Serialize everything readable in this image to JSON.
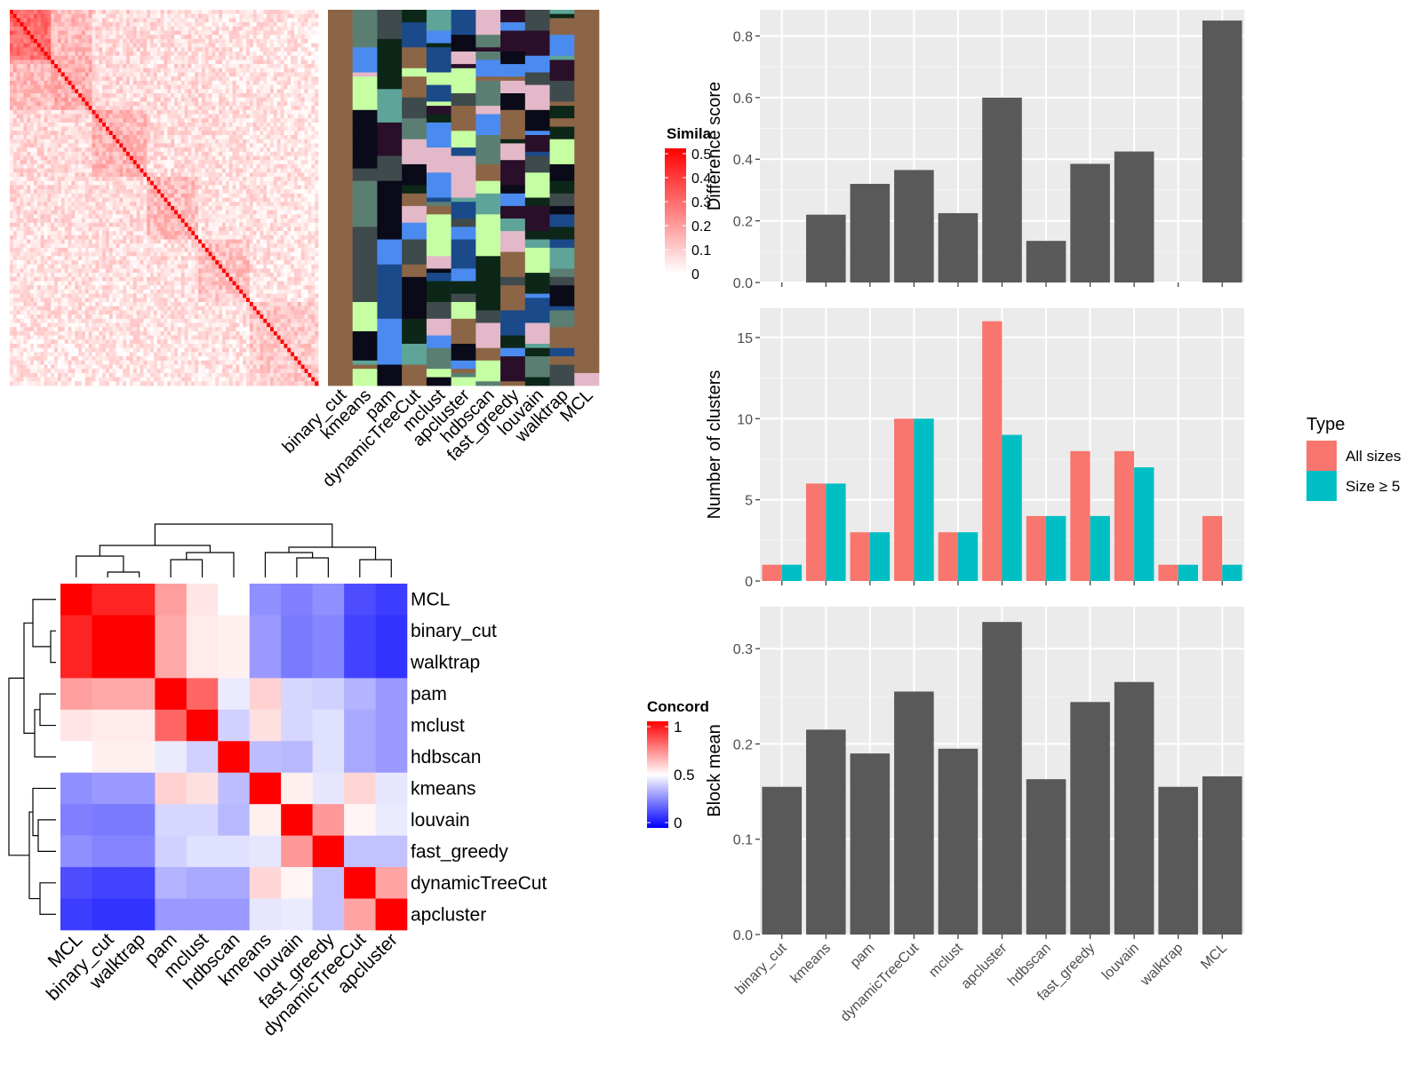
{
  "methods": [
    "binary_cut",
    "kmeans",
    "pam",
    "dynamicTreeCut",
    "mclust",
    "apcluster",
    "hdbscan",
    "fast_greedy",
    "louvain",
    "walktrap",
    "MCL"
  ],
  "colors": {
    "panel_bg": "#ebebeb",
    "bar_fill": "#595959",
    "all_sizes": "#f8766d",
    "size_ge5": "#00bfc4",
    "sim_high": "#ff0000",
    "label_palette": [
      "#8c6546",
      "#e3b8c9",
      "#4b8bf0",
      "#3f4a4d",
      "#5a7f72",
      "#5ea499",
      "#1b4a8a",
      "#0c2618",
      "#c6ffa3",
      "#0a0a18",
      "#2a0f2a"
    ]
  },
  "top_left": {
    "similarity_legend": {
      "title": "Simila",
      "ticks": [
        "0",
        "0.1",
        "0.2",
        "0.3",
        "0.4",
        "0.5"
      ]
    }
  },
  "bottom_left": {
    "concordance_legend": {
      "title": "Concord",
      "ticks": [
        "0",
        "0.5",
        "1"
      ]
    },
    "order": [
      "MCL",
      "binary_cut",
      "walktrap",
      "pam",
      "mclust",
      "hdbscan",
      "kmeans",
      "louvain",
      "fast_greedy",
      "dynamicTreeCut",
      "apcluster"
    ],
    "matrix": [
      [
        1.0,
        0.93,
        0.93,
        0.69,
        0.55,
        0.5,
        0.28,
        0.25,
        0.28,
        0.15,
        0.12
      ],
      [
        0.93,
        1.0,
        1.0,
        0.67,
        0.54,
        0.53,
        0.3,
        0.24,
        0.26,
        0.13,
        0.1
      ],
      [
        0.93,
        1.0,
        1.0,
        0.67,
        0.54,
        0.53,
        0.3,
        0.24,
        0.26,
        0.13,
        0.1
      ],
      [
        0.69,
        0.67,
        0.67,
        1.0,
        0.8,
        0.46,
        0.59,
        0.42,
        0.41,
        0.35,
        0.3
      ],
      [
        0.55,
        0.54,
        0.54,
        0.8,
        1.0,
        0.41,
        0.56,
        0.42,
        0.44,
        0.33,
        0.3
      ],
      [
        0.5,
        0.53,
        0.53,
        0.46,
        0.41,
        1.0,
        0.37,
        0.36,
        0.44,
        0.33,
        0.3
      ],
      [
        0.28,
        0.3,
        0.3,
        0.59,
        0.56,
        0.37,
        1.0,
        0.53,
        0.45,
        0.58,
        0.45
      ],
      [
        0.25,
        0.24,
        0.24,
        0.42,
        0.42,
        0.36,
        0.53,
        1.0,
        0.7,
        0.52,
        0.46
      ],
      [
        0.28,
        0.26,
        0.26,
        0.41,
        0.44,
        0.44,
        0.45,
        0.7,
        1.0,
        0.38,
        0.38
      ],
      [
        0.15,
        0.13,
        0.13,
        0.35,
        0.33,
        0.33,
        0.58,
        0.52,
        0.38,
        1.0,
        0.68
      ],
      [
        0.12,
        0.1,
        0.1,
        0.3,
        0.3,
        0.3,
        0.45,
        0.46,
        0.38,
        0.68,
        1.0
      ]
    ]
  },
  "chart_data": [
    {
      "type": "bar",
      "categories": [
        "binary_cut",
        "kmeans",
        "pam",
        "dynamicTreeCut",
        "mclust",
        "apcluster",
        "hdbscan",
        "fast_greedy",
        "louvain",
        "walktrap",
        "MCL"
      ],
      "values": [
        0,
        0.22,
        0.32,
        0.365,
        0.225,
        0.6,
        0.135,
        0.385,
        0.425,
        0,
        0.85
      ],
      "ylabel": "Difference score",
      "ylim": [
        0,
        0.885
      ],
      "yticks": [
        0.0,
        0.2,
        0.4,
        0.6,
        0.8
      ],
      "ytick_labels": [
        "0.0",
        "0.2",
        "0.4",
        "0.6",
        "0.8"
      ],
      "grid": true
    },
    {
      "type": "bar",
      "categories": [
        "binary_cut",
        "kmeans",
        "pam",
        "dynamicTreeCut",
        "mclust",
        "apcluster",
        "hdbscan",
        "fast_greedy",
        "louvain",
        "walktrap",
        "MCL"
      ],
      "series": [
        {
          "name": "All sizes",
          "values": [
            1,
            6,
            3,
            10,
            3,
            16,
            4,
            8,
            8,
            1,
            4
          ]
        },
        {
          "name": "Size ≥ 5",
          "values": [
            1,
            6,
            3,
            10,
            3,
            9,
            4,
            4,
            7,
            1,
            1
          ]
        }
      ],
      "ylabel": "Number of clusters",
      "ylim": [
        0,
        16.8
      ],
      "yticks": [
        0,
        5,
        10,
        15
      ],
      "ytick_labels": [
        "0",
        "5",
        "10",
        "15"
      ],
      "legend": {
        "title": "Type",
        "position": "right"
      },
      "grid": true
    },
    {
      "type": "bar",
      "categories": [
        "binary_cut",
        "kmeans",
        "pam",
        "dynamicTreeCut",
        "mclust",
        "apcluster",
        "hdbscan",
        "fast_greedy",
        "louvain",
        "walktrap",
        "MCL"
      ],
      "values": [
        0.155,
        0.215,
        0.19,
        0.255,
        0.195,
        0.328,
        0.163,
        0.244,
        0.265,
        0.155,
        0.166
      ],
      "ylabel": "Block mean",
      "ylim": [
        0,
        0.344
      ],
      "yticks": [
        0.0,
        0.1,
        0.2,
        0.3
      ],
      "ytick_labels": [
        "0.0",
        "0.1",
        "0.2",
        "0.3"
      ],
      "grid": true
    }
  ]
}
